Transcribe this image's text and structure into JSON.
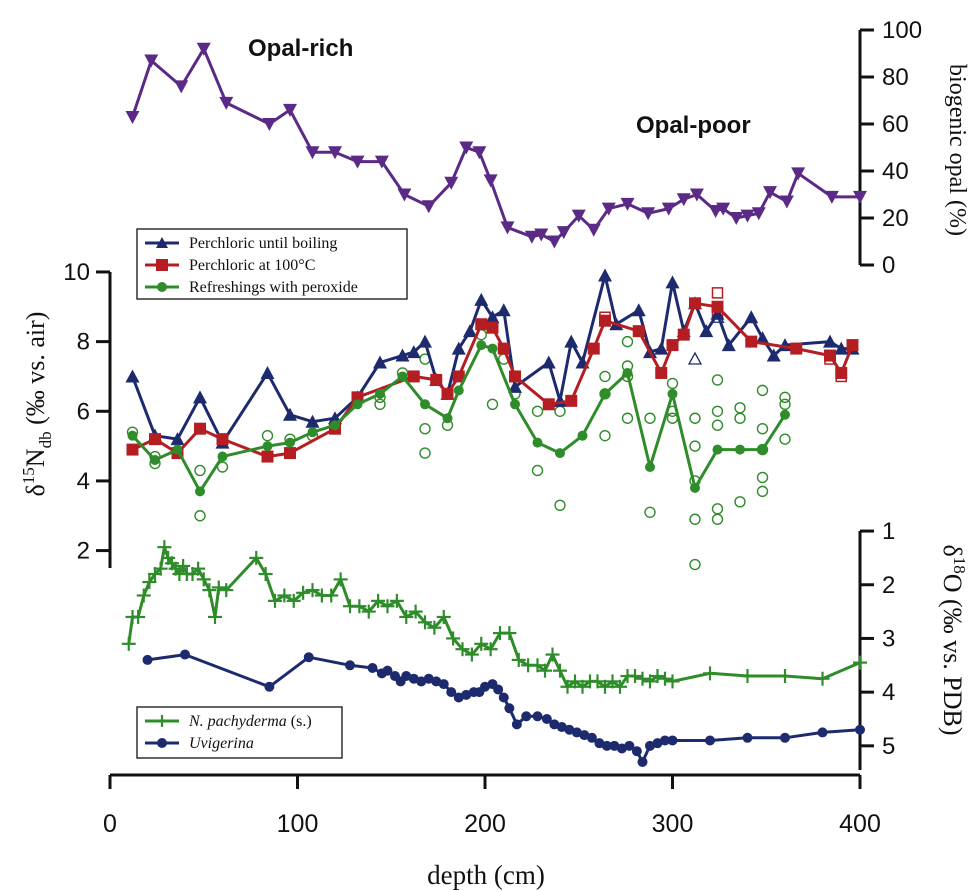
{
  "chart_data": {
    "type": "line",
    "x_axis": {
      "label": "depth (cm)",
      "range": [
        0,
        400
      ],
      "ticks": [
        "0",
        "100",
        "200",
        "300",
        "400"
      ]
    },
    "annotations": {
      "opal_rich": "Opal-rich",
      "opal_poor": "Opal-poor"
    },
    "panels": [
      {
        "id": "opal",
        "y_axis": {
          "label": "biogenic opal (%)",
          "range": [
            0,
            100
          ],
          "ticks": [
            "0",
            "20",
            "40",
            "60",
            "80",
            "100"
          ],
          "side": "right"
        },
        "series": [
          {
            "color": "#5b2a86",
            "marker": "triangle-down",
            "x": [
              12,
              22,
              38,
              50,
              62,
              85,
              96,
              108,
              120,
              132,
              145,
              157,
              170,
              182,
              190,
              197,
              203,
              212,
              225,
              230,
              237,
              242,
              250,
              258,
              266,
              276,
              287,
              298,
              306,
              313,
              323,
              327,
              334,
              340,
              346,
              352,
              361,
              367,
              385,
              400
            ],
            "y": [
              63,
              87,
              76,
              92,
              69,
              60,
              66,
              48,
              48,
              44,
              44,
              30,
              25,
              35,
              50,
              48,
              36,
              16,
              12,
              13,
              10,
              14,
              21,
              15,
              24,
              26,
              22,
              24,
              28,
              30,
              23,
              24,
              20,
              21,
              22,
              31,
              27,
              39,
              29,
              29
            ]
          }
        ]
      },
      {
        "id": "nitrogen",
        "y_axis": {
          "label": "δ15Ndb (‰ vs. air)",
          "range": [
            1.5,
            10.2
          ],
          "ticks": [
            "2",
            "4",
            "6",
            "8",
            "10"
          ],
          "side": "left"
        },
        "legend": [
          "Perchloric until boiling",
          "Perchloric at 100°C",
          "Refreshings with peroxide"
        ],
        "series": [
          {
            "name": "Perchloric until boiling",
            "color": "#1d2b6e",
            "marker": "triangle-up",
            "x": [
              12,
              24,
              36,
              48,
              60,
              84,
              96,
              108,
              120,
              132,
              144,
              156,
              162,
              168,
              174,
              180,
              186,
              192,
              198,
              204,
              210,
              216,
              234,
              240,
              246,
              252,
              264,
              270,
              282,
              288,
              294,
              300,
              306,
              312,
              318,
              324,
              330,
              342,
              348,
              354,
              360,
              384,
              390,
              396
            ],
            "y": [
              7.0,
              5.3,
              5.2,
              6.4,
              5.1,
              7.1,
              5.9,
              5.7,
              5.8,
              6.4,
              7.4,
              7.6,
              7.7,
              8.0,
              6.9,
              6.5,
              7.8,
              8.3,
              9.2,
              8.7,
              8.9,
              6.7,
              7.4,
              6.3,
              8.0,
              7.4,
              9.9,
              8.5,
              8.9,
              7.7,
              7.8,
              9.7,
              8.3,
              9.1,
              8.3,
              8.8,
              7.9,
              8.7,
              8.1,
              7.6,
              7.9,
              8.0,
              7.8,
              7.8
            ]
          },
          {
            "name": "Perchloric at 100°C",
            "color": "#b41e23",
            "marker": "square",
            "x": [
              12,
              24,
              36,
              48,
              60,
              84,
              96,
              120,
              132,
              162,
              174,
              180,
              186,
              198,
              204,
              210,
              216,
              234,
              246,
              258,
              264,
              282,
              294,
              300,
              306,
              312,
              324,
              342,
              366,
              384,
              390,
              396
            ],
            "y": [
              4.9,
              5.2,
              4.8,
              5.5,
              5.2,
              4.7,
              4.8,
              5.5,
              6.4,
              7.0,
              6.9,
              6.5,
              7.0,
              8.5,
              8.4,
              7.8,
              7.0,
              6.2,
              6.3,
              7.8,
              8.6,
              8.3,
              7.1,
              7.9,
              8.2,
              9.1,
              9.0,
              8.0,
              7.8,
              7.6,
              7.1,
              7.9
            ]
          },
          {
            "name": "Refreshings with peroxide",
            "color": "#2f8c2a",
            "marker": "circle",
            "x": [
              12,
              24,
              36,
              48,
              60,
              84,
              96,
              108,
              120,
              132,
              144,
              156,
              168,
              180,
              186,
              198,
              204,
              216,
              228,
              240,
              252,
              264,
              276,
              288,
              300,
              312,
              324,
              336,
              348,
              360
            ],
            "y": [
              5.3,
              4.6,
              4.9,
              3.7,
              4.7,
              5.0,
              5.1,
              5.4,
              5.6,
              6.2,
              6.5,
              7.0,
              6.2,
              5.8,
              6.6,
              7.9,
              7.8,
              6.2,
              5.1,
              4.8,
              5.3,
              6.5,
              7.1,
              4.4,
              6.5,
              3.8,
              4.9,
              4.9,
              4.9,
              5.9
            ]
          }
        ],
        "replicates": [
          {
            "color": "#2f8c2a",
            "marker": "open-circle",
            "x": [
              12,
              24,
              24,
              48,
              48,
              60,
              84,
              96,
              108,
              120,
              144,
              144,
              156,
              168,
              168,
              168,
              180,
              198,
              204,
              204,
              210,
              216,
              228,
              228,
              240,
              240,
              264,
              264,
              264,
              276,
              276,
              276,
              276,
              288,
              288,
              300,
              300,
              300,
              312,
              312,
              312,
              312,
              312,
              324,
              324,
              324,
              324,
              324,
              336,
              336,
              336,
              348,
              348,
              348,
              348,
              348,
              360,
              360,
              360
            ],
            "y": [
              5.4,
              4.5,
              4.7,
              4.3,
              3.0,
              4.4,
              5.3,
              5.2,
              5.3,
              5.5,
              6.4,
              6.2,
              7.1,
              7.5,
              5.5,
              4.8,
              5.6,
              8.2,
              8.5,
              6.2,
              7.5,
              6.5,
              6.0,
              4.3,
              6.0,
              3.3,
              7.0,
              6.5,
              5.3,
              8.0,
              7.3,
              7.0,
              5.8,
              5.8,
              3.1,
              6.8,
              6.0,
              5.8,
              5.8,
              5.0,
              4.0,
              2.9,
              1.6,
              6.9,
              6.0,
              5.6,
              3.2,
              2.9,
              6.1,
              5.8,
              3.4,
              6.6,
              5.5,
              4.9,
              4.1,
              3.7,
              6.4,
              6.2,
              5.2
            ]
          },
          {
            "color": "#b41e23",
            "marker": "open-square",
            "x": [
              264,
              324,
              324,
              384,
              390
            ],
            "y": [
              8.7,
              9.4,
              8.8,
              7.5,
              7.0
            ]
          },
          {
            "color": "#1d2b6e",
            "marker": "open-triangle",
            "x": [
              312,
              324
            ],
            "y": [
              7.5,
              8.7
            ]
          }
        ]
      },
      {
        "id": "oxygen",
        "y_axis": {
          "label": "δ18O (‰ vs. PDB)",
          "range": [
            0.85,
            5.45
          ],
          "inverted": true,
          "ticks": [
            "1",
            "2",
            "3",
            "4",
            "5"
          ],
          "side": "right"
        },
        "legend": [
          "N. pachyderma (s.)",
          "Uvigerina"
        ],
        "series": [
          {
            "name": "N. pachyderma (s.)",
            "color": "#2f8c2a",
            "marker": "plus",
            "x": [
              10,
              12,
              15,
              18,
              21,
              24,
              27,
              29,
              31,
              33,
              35,
              37,
              39,
              41,
              44,
              47,
              50,
              53,
              56,
              58,
              62,
              78,
              83,
              88,
              93,
              98,
              103,
              108,
              113,
              118,
              123,
              128,
              133,
              138,
              143,
              148,
              153,
              158,
              163,
              168,
              173,
              178,
              183,
              188,
              193,
              198,
              203,
              208,
              213,
              218,
              223,
              228,
              232,
              236,
              240,
              244,
              248,
              252,
              256,
              260,
              264,
              268,
              272,
              276,
              280,
              284,
              288,
              292,
              296,
              300,
              320,
              340,
              360,
              380,
              400
            ],
            "y": [
              3.1,
              2.6,
              2.6,
              2.2,
              1.95,
              1.8,
              1.7,
              1.3,
              1.5,
              1.6,
              1.7,
              1.8,
              1.65,
              1.8,
              1.8,
              1.7,
              1.9,
              2.1,
              2.6,
              2.05,
              2.1,
              1.5,
              1.8,
              2.3,
              2.2,
              2.3,
              2.15,
              2.1,
              2.2,
              2.2,
              1.9,
              2.4,
              2.4,
              2.5,
              2.3,
              2.4,
              2.3,
              2.6,
              2.5,
              2.7,
              2.8,
              2.6,
              3.0,
              3.2,
              3.3,
              3.1,
              3.2,
              2.9,
              2.9,
              3.4,
              3.5,
              3.5,
              3.6,
              3.3,
              3.6,
              3.9,
              3.8,
              3.9,
              3.8,
              3.8,
              3.9,
              3.8,
              3.9,
              3.7,
              3.7,
              3.75,
              3.8,
              3.7,
              3.75,
              3.8,
              3.65,
              3.7,
              3.7,
              3.75,
              3.45
            ]
          },
          {
            "name": "Uvigerina",
            "color": "#1d2b6e",
            "marker": "circle",
            "x": [
              20,
              40,
              85,
              106,
              128,
              140,
              145,
              148,
              152,
              155,
              158,
              162,
              166,
              170,
              174,
              178,
              182,
              186,
              190,
              194,
              197,
              200,
              204,
              207,
              210,
              213,
              217,
              222,
              228,
              233,
              237,
              241,
              245,
              249,
              253,
              257,
              261,
              265,
              269,
              273,
              277,
              281,
              284,
              288,
              292,
              296,
              300,
              320,
              340,
              360,
              380,
              400
            ],
            "y": [
              3.4,
              3.3,
              3.9,
              3.35,
              3.5,
              3.55,
              3.65,
              3.6,
              3.7,
              3.8,
              3.7,
              3.75,
              3.8,
              3.75,
              3.8,
              3.85,
              4.0,
              4.1,
              4.05,
              4.0,
              4.0,
              3.9,
              3.85,
              3.95,
              4.1,
              4.3,
              4.6,
              4.45,
              4.45,
              4.5,
              4.6,
              4.65,
              4.7,
              4.75,
              4.8,
              4.85,
              4.95,
              5.0,
              5.0,
              5.05,
              5.0,
              5.1,
              5.3,
              5.0,
              4.95,
              4.9,
              4.9,
              4.9,
              4.85,
              4.85,
              4.75,
              4.7
            ]
          }
        ]
      }
    ]
  }
}
